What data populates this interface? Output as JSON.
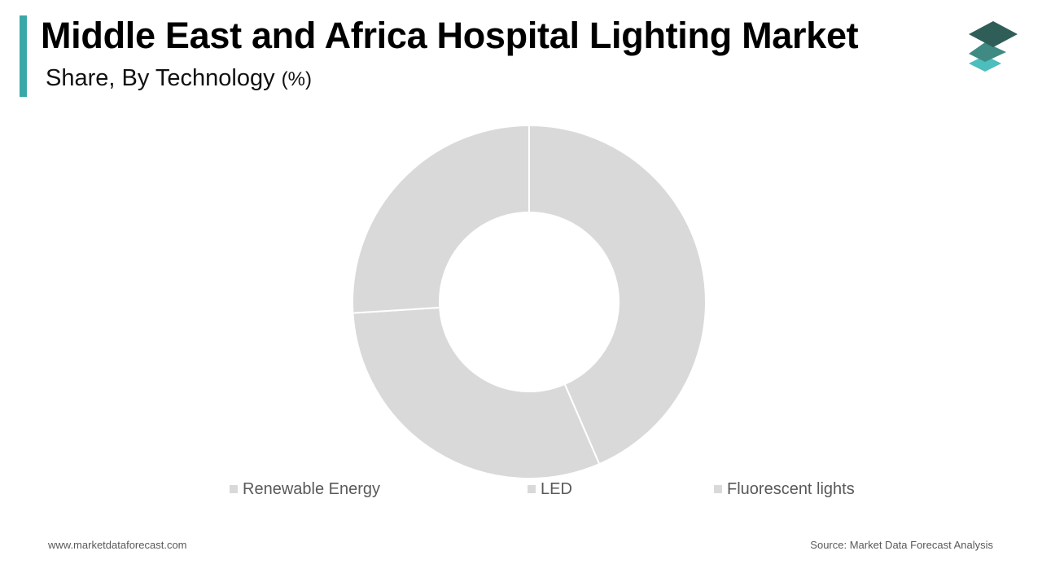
{
  "header": {
    "title": "Middle East and Africa Hospital Lighting Market",
    "subtitle": "Share, By Technology",
    "unit": "(%)"
  },
  "colors": {
    "accent": "#3aa8a8",
    "slice": "#d9d9d9",
    "separator": "#ffffff",
    "logo_top": "#2f5e58",
    "logo_mid": "#3f8a82",
    "logo_bottom": "#4dbdbd"
  },
  "logo": {
    "icon": "stacked-layers-icon"
  },
  "chart_data": {
    "type": "pie",
    "donut": true,
    "categories": [
      "Renewable Energy",
      "LED",
      "Fluorescent lights"
    ],
    "values": [
      43.5,
      30.5,
      26
    ],
    "legend_position": "bottom"
  },
  "footer": {
    "website": "www.marketdataforecast.com",
    "source": "Source: Market Data Forecast Analysis"
  }
}
